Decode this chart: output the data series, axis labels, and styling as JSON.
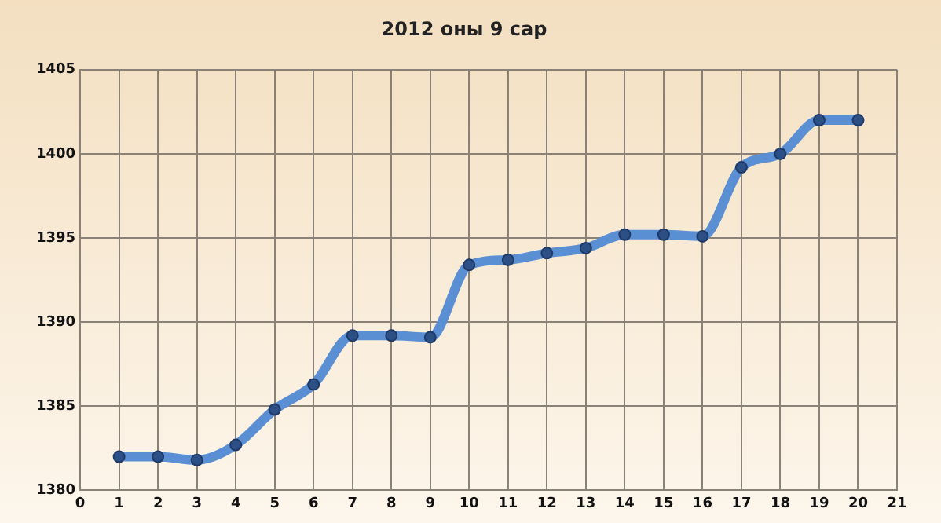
{
  "chart_data": {
    "type": "line",
    "title": "2012 оны 9 сар",
    "x": [
      1,
      2,
      3,
      4,
      5,
      6,
      7,
      8,
      9,
      10,
      11,
      12,
      13,
      14,
      15,
      16,
      17,
      18,
      19,
      20
    ],
    "series": [
      {
        "color": "#5b8fd4",
        "values": [
          1382.0,
          1382.0,
          1381.8,
          1382.7,
          1384.8,
          1386.3,
          1389.2,
          1389.2,
          1389.1,
          1393.4,
          1393.7,
          1394.1,
          1394.4,
          1395.2,
          1395.2,
          1395.1,
          1399.2,
          1400.0,
          1402.0,
          1402.0
        ]
      }
    ],
    "xlim": [
      0,
      21
    ],
    "xticks": [
      0,
      1,
      2,
      3,
      4,
      5,
      6,
      7,
      8,
      9,
      10,
      11,
      12,
      13,
      14,
      15,
      16,
      17,
      18,
      19,
      20,
      21
    ],
    "ylim": [
      1380,
      1405
    ],
    "yticks": [
      1380,
      1385,
      1390,
      1395,
      1400,
      1405
    ],
    "grid": true,
    "legend": false,
    "marker": "circle",
    "line_style": "solid"
  }
}
